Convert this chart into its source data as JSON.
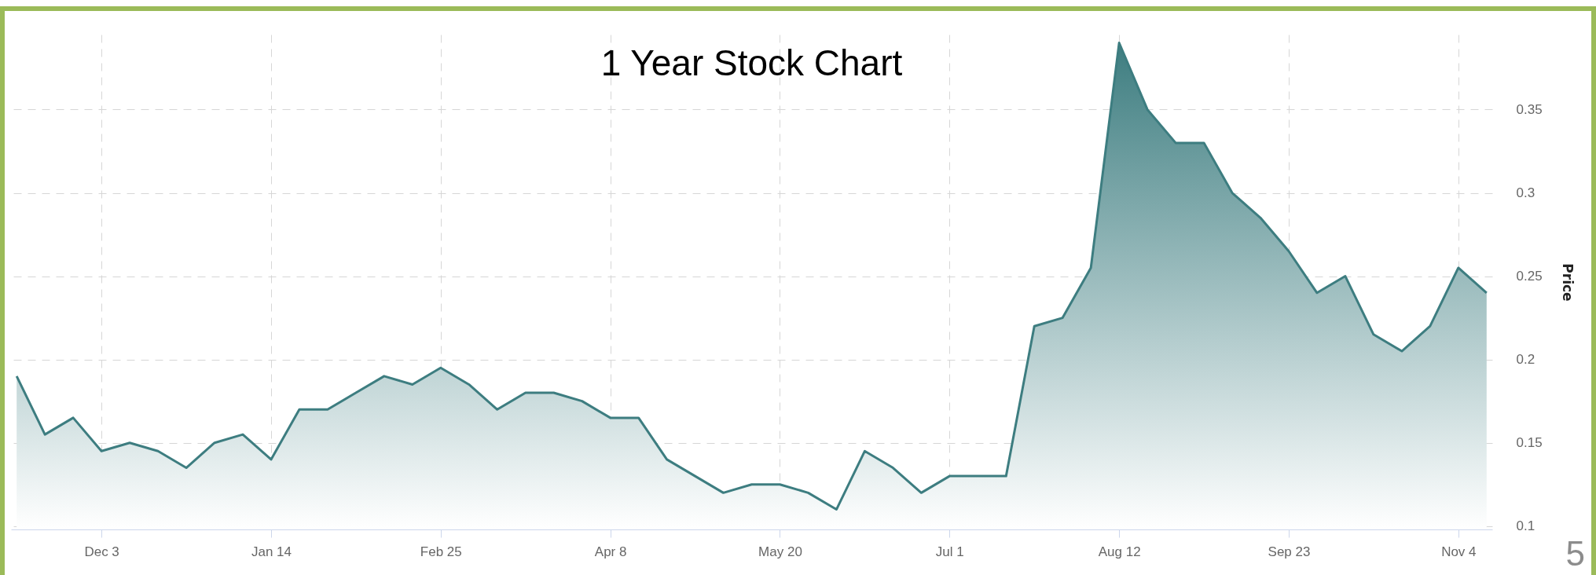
{
  "chart_data": {
    "type": "area",
    "title": "1 Year Stock Chart",
    "ylabel": "Price",
    "color": "#3d7d80",
    "grid": true,
    "categories": [
      null,
      null,
      null,
      "Dec 3",
      null,
      null,
      null,
      null,
      null,
      "Jan 14",
      null,
      null,
      null,
      null,
      null,
      "Feb 25",
      null,
      null,
      null,
      null,
      null,
      "Apr 8",
      null,
      null,
      null,
      null,
      null,
      "May 20",
      null,
      null,
      null,
      null,
      null,
      "Jul 1",
      null,
      null,
      null,
      null,
      null,
      "Aug 12",
      null,
      null,
      null,
      null,
      null,
      "Sep 23",
      null,
      null,
      null,
      null,
      null,
      "Nov 4",
      null
    ],
    "values": [
      0.19,
      0.155,
      0.165,
      0.145,
      0.15,
      0.145,
      0.135,
      0.15,
      0.155,
      0.14,
      0.17,
      0.17,
      0.18,
      0.19,
      0.185,
      0.195,
      0.185,
      0.17,
      0.18,
      0.18,
      0.175,
      0.165,
      0.165,
      0.14,
      0.13,
      0.12,
      0.125,
      0.125,
      0.12,
      0.11,
      0.145,
      0.135,
      0.12,
      0.13,
      0.13,
      0.13,
      0.22,
      0.225,
      0.255,
      0.39,
      0.35,
      0.33,
      0.33,
      0.3,
      0.285,
      0.265,
      0.24,
      0.25,
      0.215,
      0.205,
      0.22,
      0.255,
      0.24
    ],
    "ylim": [
      0.098,
      0.395
    ],
    "yticks": [
      0.1,
      0.15,
      0.2,
      0.25,
      0.3,
      0.35
    ],
    "annotations": [
      "5"
    ]
  }
}
